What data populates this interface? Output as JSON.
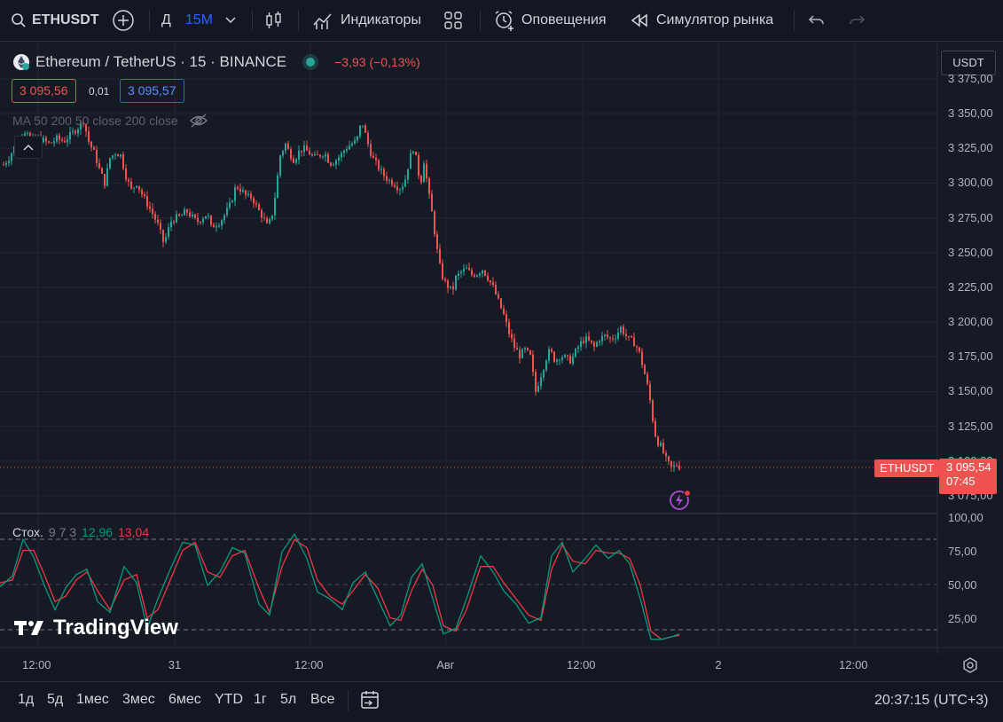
{
  "toolbar": {
    "symbol": "ETHUSDT",
    "timeframe_prefix": "Д",
    "timeframe": "15М",
    "indicators": "Индикаторы",
    "alerts": "Оповещения",
    "replay": "Симулятор рынка"
  },
  "legend": {
    "title": "Ethereum / TetherUS · 15 · BINANCE",
    "change": "−3,93 (−0,13%)",
    "bid": "3 095,56",
    "spread": "0,01",
    "ask": "3 095,57",
    "ma_label": "MA 50 200 50 close 200 close"
  },
  "currency": "USDT",
  "price_axis": [
    "3 375,00",
    "3 350,00",
    "3 325,00",
    "3 300,00",
    "3 275,00",
    "3 250,00",
    "3 225,00",
    "3 200,00",
    "3 175,00",
    "3 150,00",
    "3 125,00",
    "3 100,00",
    "3 075,00"
  ],
  "last_price": {
    "symbol": "ETHUSDT",
    "price": "3 095,54",
    "countdown": "07:45"
  },
  "stoch": {
    "name": "Стох.",
    "params": "9 7 3",
    "k": "12,96",
    "d": "13,04",
    "axis": [
      "100,00",
      "75,00",
      "50,00",
      "25,00"
    ]
  },
  "watermark": "TradingView",
  "time_axis": [
    "12:00",
    "31",
    "12:00",
    "Авг",
    "12:00",
    "2",
    "12:00"
  ],
  "bottom": {
    "ranges": [
      "1д",
      "5д",
      "1мес",
      "3мес",
      "6мес",
      "YTD",
      "1г",
      "5л",
      "Все"
    ],
    "clock": "20:37:15 (UTC+3)"
  },
  "colors": {
    "up": "#26a69a",
    "down": "#ef5350",
    "k_line": "#089981",
    "d_line": "#f23645",
    "bg": "#161a25"
  },
  "chart_data": {
    "type": "candlestick",
    "ylim": [
      3070,
      3380
    ],
    "close_path": [
      [
        0,
        3310
      ],
      [
        10,
        3318
      ],
      [
        18,
        3328
      ],
      [
        26,
        3335
      ],
      [
        30,
        3340
      ],
      [
        34,
        3330
      ],
      [
        40,
        3333
      ],
      [
        48,
        3331
      ],
      [
        56,
        3328
      ],
      [
        64,
        3332
      ],
      [
        72,
        3330
      ],
      [
        80,
        3335
      ],
      [
        88,
        3340
      ],
      [
        94,
        3345
      ],
      [
        100,
        3330
      ],
      [
        106,
        3322
      ],
      [
        112,
        3310
      ],
      [
        118,
        3300
      ],
      [
        124,
        3318
      ],
      [
        130,
        3322
      ],
      [
        136,
        3320
      ],
      [
        142,
        3305
      ],
      [
        148,
        3295
      ],
      [
        154,
        3300
      ],
      [
        160,
        3292
      ],
      [
        166,
        3285
      ],
      [
        172,
        3278
      ],
      [
        178,
        3270
      ],
      [
        184,
        3258
      ],
      [
        188,
        3262
      ],
      [
        192,
        3272
      ],
      [
        198,
        3275
      ],
      [
        204,
        3276
      ],
      [
        210,
        3280
      ],
      [
        216,
        3276
      ],
      [
        222,
        3272
      ],
      [
        228,
        3275
      ],
      [
        234,
        3278
      ],
      [
        238,
        3268
      ],
      [
        242,
        3270
      ],
      [
        248,
        3272
      ],
      [
        254,
        3278
      ],
      [
        260,
        3285
      ],
      [
        266,
        3298
      ],
      [
        272,
        3295
      ],
      [
        278,
        3290
      ],
      [
        284,
        3290
      ],
      [
        290,
        3282
      ],
      [
        296,
        3276
      ],
      [
        302,
        3268
      ],
      [
        308,
        3280
      ],
      [
        312,
        3300
      ],
      [
        316,
        3320
      ],
      [
        322,
        3328
      ],
      [
        326,
        3322
      ],
      [
        332,
        3316
      ],
      [
        336,
        3322
      ],
      [
        342,
        3325
      ],
      [
        348,
        3322
      ],
      [
        354,
        3318
      ],
      [
        360,
        3320
      ],
      [
        366,
        3322
      ],
      [
        372,
        3314
      ],
      [
        378,
        3316
      ],
      [
        384,
        3320
      ],
      [
        390,
        3325
      ],
      [
        396,
        3328
      ],
      [
        402,
        3330
      ],
      [
        408,
        3345
      ],
      [
        414,
        3330
      ],
      [
        420,
        3318
      ],
      [
        426,
        3312
      ],
      [
        432,
        3306
      ],
      [
        438,
        3302
      ],
      [
        444,
        3300
      ],
      [
        450,
        3296
      ],
      [
        456,
        3300
      ],
      [
        462,
        3318
      ],
      [
        466,
        3325
      ],
      [
        470,
        3315
      ],
      [
        474,
        3298
      ],
      [
        478,
        3316
      ],
      [
        484,
        3290
      ],
      [
        488,
        3275
      ],
      [
        492,
        3255
      ],
      [
        496,
        3240
      ],
      [
        500,
        3230
      ],
      [
        506,
        3225
      ],
      [
        510,
        3222
      ],
      [
        514,
        3232
      ],
      [
        520,
        3236
      ],
      [
        526,
        3238
      ],
      [
        532,
        3234
      ],
      [
        538,
        3235
      ],
      [
        544,
        3238
      ],
      [
        550,
        3232
      ],
      [
        556,
        3225
      ],
      [
        562,
        3215
      ],
      [
        568,
        3205
      ],
      [
        574,
        3192
      ],
      [
        580,
        3182
      ],
      [
        586,
        3176
      ],
      [
        592,
        3180
      ],
      [
        598,
        3175
      ],
      [
        604,
        3150
      ],
      [
        610,
        3162
      ],
      [
        616,
        3174
      ],
      [
        620,
        3180
      ],
      [
        626,
        3172
      ],
      [
        632,
        3176
      ],
      [
        638,
        3174
      ],
      [
        644,
        3172
      ],
      [
        650,
        3180
      ],
      [
        656,
        3186
      ],
      [
        660,
        3188
      ],
      [
        664,
        3186
      ],
      [
        670,
        3182
      ],
      [
        676,
        3188
      ],
      [
        682,
        3190
      ],
      [
        688,
        3188
      ],
      [
        694,
        3190
      ],
      [
        700,
        3196
      ],
      [
        704,
        3192
      ],
      [
        708,
        3188
      ],
      [
        714,
        3186
      ],
      [
        720,
        3180
      ],
      [
        724,
        3170
      ],
      [
        728,
        3160
      ],
      [
        732,
        3148
      ],
      [
        736,
        3130
      ],
      [
        740,
        3115
      ],
      [
        746,
        3110
      ],
      [
        750,
        3102
      ],
      [
        754,
        3098
      ],
      [
        758,
        3094
      ],
      [
        762,
        3098
      ],
      [
        766,
        3096
      ]
    ],
    "stoch_k": [
      [
        0,
        49
      ],
      [
        14,
        57
      ],
      [
        26,
        84
      ],
      [
        38,
        71
      ],
      [
        50,
        50
      ],
      [
        62,
        32
      ],
      [
        74,
        48
      ],
      [
        86,
        58
      ],
      [
        98,
        62
      ],
      [
        110,
        38
      ],
      [
        124,
        30
      ],
      [
        140,
        64
      ],
      [
        154,
        52
      ],
      [
        166,
        18
      ],
      [
        178,
        40
      ],
      [
        192,
        62
      ],
      [
        206,
        82
      ],
      [
        220,
        80
      ],
      [
        234,
        50
      ],
      [
        248,
        60
      ],
      [
        262,
        78
      ],
      [
        276,
        74
      ],
      [
        292,
        36
      ],
      [
        304,
        28
      ],
      [
        318,
        75
      ],
      [
        332,
        88
      ],
      [
        346,
        70
      ],
      [
        358,
        45
      ],
      [
        372,
        40
      ],
      [
        386,
        32
      ],
      [
        398,
        52
      ],
      [
        412,
        60
      ],
      [
        426,
        40
      ],
      [
        440,
        20
      ],
      [
        452,
        28
      ],
      [
        464,
        56
      ],
      [
        476,
        66
      ],
      [
        488,
        40
      ],
      [
        500,
        14
      ],
      [
        514,
        18
      ],
      [
        526,
        40
      ],
      [
        542,
        72
      ],
      [
        556,
        60
      ],
      [
        568,
        46
      ],
      [
        582,
        36
      ],
      [
        596,
        22
      ],
      [
        610,
        26
      ],
      [
        622,
        72
      ],
      [
        634,
        82
      ],
      [
        646,
        60
      ],
      [
        660,
        70
      ],
      [
        672,
        80
      ],
      [
        686,
        70
      ],
      [
        698,
        76
      ],
      [
        710,
        66
      ],
      [
        722,
        40
      ],
      [
        734,
        10
      ],
      [
        746,
        10
      ],
      [
        758,
        12
      ],
      [
        766,
        14
      ]
    ],
    "stoch_d": [
      [
        0,
        52
      ],
      [
        14,
        54
      ],
      [
        26,
        76
      ],
      [
        38,
        76
      ],
      [
        50,
        58
      ],
      [
        62,
        38
      ],
      [
        74,
        42
      ],
      [
        86,
        54
      ],
      [
        98,
        60
      ],
      [
        110,
        46
      ],
      [
        124,
        32
      ],
      [
        140,
        54
      ],
      [
        154,
        58
      ],
      [
        166,
        26
      ],
      [
        178,
        32
      ],
      [
        192,
        54
      ],
      [
        206,
        76
      ],
      [
        220,
        82
      ],
      [
        234,
        60
      ],
      [
        248,
        56
      ],
      [
        262,
        72
      ],
      [
        276,
        76
      ],
      [
        292,
        48
      ],
      [
        304,
        30
      ],
      [
        318,
        64
      ],
      [
        332,
        84
      ],
      [
        346,
        78
      ],
      [
        358,
        54
      ],
      [
        372,
        42
      ],
      [
        386,
        36
      ],
      [
        398,
        46
      ],
      [
        412,
        58
      ],
      [
        426,
        48
      ],
      [
        440,
        26
      ],
      [
        452,
        24
      ],
      [
        464,
        46
      ],
      [
        476,
        62
      ],
      [
        488,
        50
      ],
      [
        500,
        20
      ],
      [
        514,
        16
      ],
      [
        526,
        32
      ],
      [
        542,
        64
      ],
      [
        556,
        64
      ],
      [
        568,
        52
      ],
      [
        582,
        40
      ],
      [
        596,
        28
      ],
      [
        610,
        24
      ],
      [
        622,
        62
      ],
      [
        634,
        80
      ],
      [
        646,
        68
      ],
      [
        660,
        66
      ],
      [
        672,
        76
      ],
      [
        686,
        74
      ],
      [
        698,
        74
      ],
      [
        710,
        70
      ],
      [
        722,
        50
      ],
      [
        734,
        16
      ],
      [
        746,
        10
      ],
      [
        758,
        12
      ],
      [
        766,
        13
      ]
    ]
  }
}
